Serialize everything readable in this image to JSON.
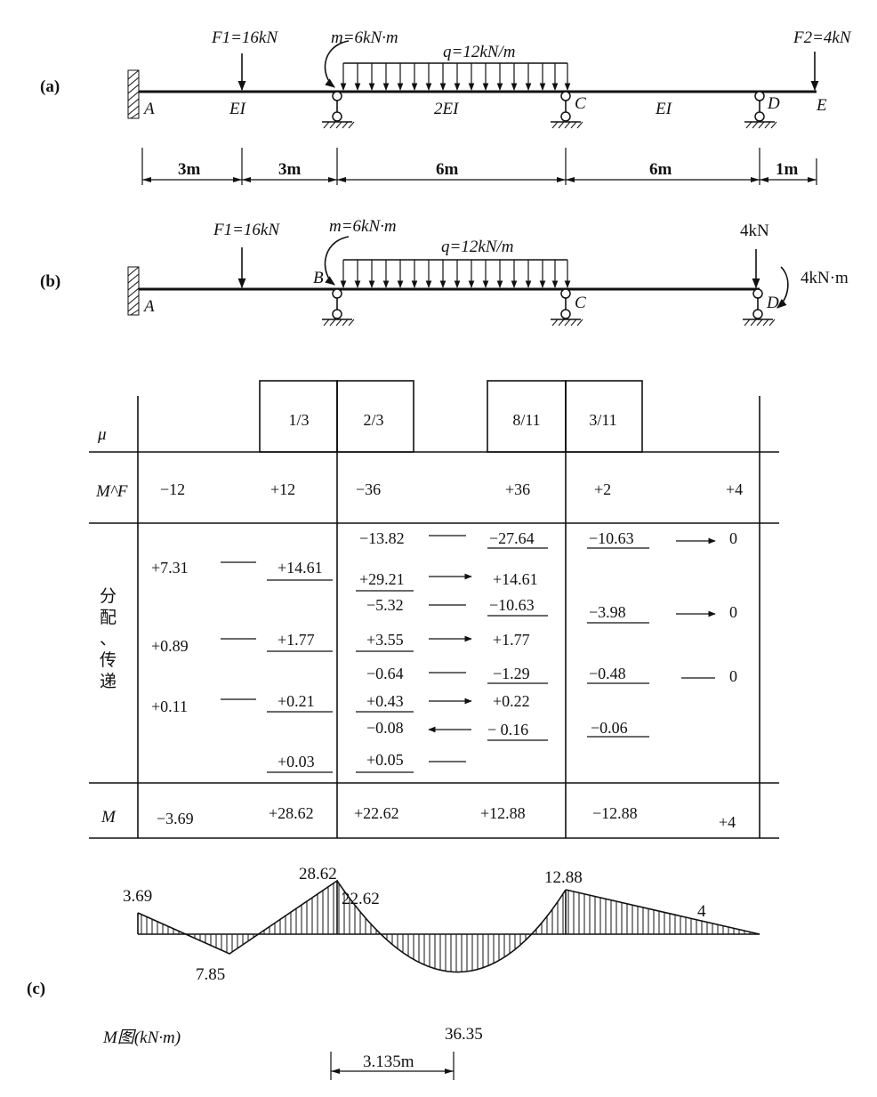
{
  "panel_labels": {
    "a": "(a)",
    "b": "(b)",
    "c": "(c)"
  },
  "fig_a": {
    "force1": "F1=16kN",
    "moment": "m=6kN·m",
    "load": "q=12kN/m",
    "force2": "F2=4kN",
    "point_A": "A",
    "point_C": "C",
    "point_D": "D",
    "point_E": "E",
    "stiffness_AB": "EI",
    "stiffness_BC": "2EI",
    "stiffness_CD": "EI",
    "dims": [
      "3m",
      "3m",
      "6m",
      "6m",
      "1m"
    ]
  },
  "fig_b": {
    "force1": "F1=16kN",
    "moment": "m=6kN·m",
    "load": "q=12kN/m",
    "force_D": "4kN",
    "moment_D": "4kN·m",
    "point_A": "A",
    "point_B": "B",
    "point_C": "C",
    "point_D": "D"
  },
  "table": {
    "row_mu": "μ",
    "row_mf": "M^F",
    "row_dist_lines": [
      "分",
      "配",
      "、",
      "传",
      "递"
    ],
    "row_m": "M",
    "mu": [
      "1/3",
      "2/3",
      "8/11",
      "3/11"
    ],
    "mf": [
      "−12",
      "+12",
      "−36",
      "+36",
      "+2",
      "+4"
    ],
    "col1": [
      "+7.31",
      "+0.89",
      "+0.11"
    ],
    "col2": [
      "+14.61",
      "+1.77",
      "+0.21",
      "+0.03"
    ],
    "col3": [
      "−13.82",
      "+29.21",
      "−5.32",
      "+3.55",
      "−0.64",
      "+0.43",
      "−0.08",
      "+0.05"
    ],
    "col4": [
      "−27.64",
      "+14.61",
      "−10.63",
      "+1.77",
      "−1.29",
      "+0.22",
      "− 0.16"
    ],
    "col5": [
      "−10.63",
      "−3.98",
      "−0.48",
      "−0.06"
    ],
    "col6": [
      "0",
      "0",
      "0"
    ],
    "final": [
      "−3.69",
      "+28.62",
      "+22.62",
      "+12.88",
      "−12.88",
      "+4"
    ]
  },
  "moment_diagram": {
    "title": "M图(kN·m)",
    "labels": [
      "3.69",
      "7.85",
      "28.62",
      "22.62",
      "36.35",
      "12.88",
      "4"
    ],
    "dim": "3.135m"
  }
}
